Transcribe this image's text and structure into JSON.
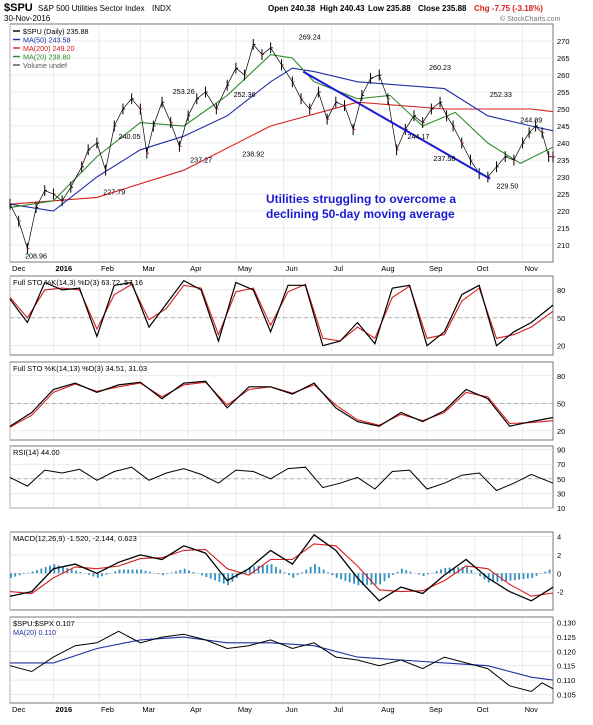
{
  "header": {
    "symbol": "$SPU",
    "name": "S&P 500 Utilities Sector Index",
    "exchange": "INDX",
    "date": "30-Nov-2016",
    "open": "Open 240.38",
    "high": "High 240.43",
    "low": "Low 235.88",
    "close": "Close 235.88",
    "chg": "Chg -7.75 (-3.18%)",
    "watermark": "© StockCharts.com"
  },
  "colors": {
    "price": "#000000",
    "ma50": "#1f2fa6",
    "ma200": "#d52020",
    "ma20": "#2f8a2f",
    "trendline": "#1a1ad6",
    "annotation": "#1a1ad6",
    "histogram": "#2f8fc0",
    "slow": "#d52020",
    "grid": "#dcdcdc"
  },
  "chart_data": [
    {
      "type": "line",
      "panel": "price",
      "title": "$SPU S&P 500 Utilities Sector Index INDX",
      "legend": [
        "$SPU (Daily) 235.88",
        "MA(50) 243.58",
        "MA(200) 249.20",
        "MA(20) 238.80",
        "Volume undef"
      ],
      "ylim": [
        205,
        275
      ],
      "yticks": [
        210,
        215,
        220,
        225,
        230,
        235,
        240,
        245,
        250,
        255,
        260,
        265,
        270
      ],
      "x_labels": [
        "Dec",
        "2016",
        "Feb",
        "Mar",
        "Apr",
        "May",
        "Jun",
        "Jul",
        "Aug",
        "Sep",
        "Oct",
        "Nov"
      ],
      "x_range": [
        0,
        250
      ],
      "price": {
        "x": [
          0,
          4,
          8,
          12,
          16,
          20,
          24,
          28,
          33,
          36,
          40,
          44,
          48,
          52,
          56,
          60,
          63,
          66,
          70,
          74,
          78,
          82,
          86,
          90,
          95,
          100,
          104,
          108,
          112,
          116,
          120,
          125,
          130,
          134,
          138,
          142,
          146,
          150,
          154,
          158,
          162,
          166,
          170,
          174,
          178,
          182,
          186,
          190,
          194,
          198,
          201,
          204,
          208,
          212,
          216,
          220,
          224,
          228,
          232,
          236,
          239,
          242,
          245,
          248,
          250
        ],
        "y": [
          222,
          217,
          209,
          221,
          226,
          225,
          223,
          227,
          233,
          238,
          240,
          232,
          245,
          250,
          253,
          250,
          237,
          245,
          252,
          246,
          239,
          248,
          253,
          255,
          250,
          257,
          262,
          260,
          269,
          266,
          268,
          263,
          258,
          253,
          250,
          255,
          247,
          252,
          251,
          244,
          254,
          259,
          260,
          253,
          238,
          244,
          248,
          246,
          250,
          252,
          248,
          245,
          240,
          235,
          231,
          230,
          233,
          236,
          235,
          240,
          243,
          245,
          243,
          236,
          235.88
        ]
      },
      "ma50": {
        "x": [
          0,
          20,
          40,
          60,
          80,
          100,
          120,
          130,
          140,
          160,
          180,
          200,
          220,
          240,
          250
        ],
        "y": [
          222,
          220,
          230,
          238,
          242,
          248,
          258,
          262,
          261,
          258,
          257,
          256,
          248,
          245,
          243.58
        ]
      },
      "ma200": {
        "x": [
          0,
          40,
          80,
          120,
          160,
          200,
          240,
          250
        ],
        "y": [
          222,
          224,
          232,
          245,
          252,
          250,
          250,
          249.2
        ]
      },
      "ma20": {
        "x": [
          0,
          20,
          40,
          60,
          80,
          100,
          120,
          130,
          140,
          160,
          175,
          190,
          205,
          220,
          235,
          250
        ],
        "y": [
          221,
          223,
          236,
          246,
          245,
          254,
          266,
          265,
          258,
          253,
          254,
          245,
          249,
          240,
          234,
          238.8
        ]
      },
      "trendline": {
        "x": [
          135,
          221
        ],
        "y": [
          261,
          229.5
        ]
      },
      "annotations": [
        {
          "x": 12,
          "y": 208.96,
          "label": "208.96",
          "pos": "below"
        },
        {
          "x": 48,
          "y": 227.79,
          "label": "227.79",
          "pos": "below"
        },
        {
          "x": 55,
          "y": 240.05,
          "label": "240.05",
          "pos": "above"
        },
        {
          "x": 80,
          "y": 253.26,
          "label": "253.26",
          "pos": "above"
        },
        {
          "x": 88,
          "y": 237.27,
          "label": "237.27",
          "pos": "below"
        },
        {
          "x": 108,
          "y": 252.36,
          "label": "252.36",
          "pos": "above"
        },
        {
          "x": 112,
          "y": 238.92,
          "label": "238.92",
          "pos": "below"
        },
        {
          "x": 138,
          "y": 269.24,
          "label": "269.24",
          "pos": "above"
        },
        {
          "x": 198,
          "y": 260.23,
          "label": "260.23",
          "pos": "above"
        },
        {
          "x": 188,
          "y": 244.17,
          "label": "244.17",
          "pos": "below"
        },
        {
          "x": 200,
          "y": 237.58,
          "label": "237.58",
          "pos": "below"
        },
        {
          "x": 226,
          "y": 252.33,
          "label": "252.33",
          "pos": "above"
        },
        {
          "x": 240,
          "y": 244.89,
          "label": "244.89",
          "pos": "above"
        },
        {
          "x": 229,
          "y": 229.5,
          "label": "229.50",
          "pos": "below"
        }
      ],
      "note": [
        "Utilities struggling to overcome a",
        "declining 50-day moving average"
      ]
    },
    {
      "type": "line",
      "panel": "sto1",
      "title": "Full STO %K(14,3) %D(3) 63.72, 57.16",
      "ylim": [
        10,
        95
      ],
      "yticks": [
        20,
        50,
        80
      ],
      "k": {
        "x": [
          0,
          8,
          16,
          24,
          32,
          40,
          48,
          56,
          64,
          72,
          80,
          88,
          96,
          104,
          112,
          120,
          128,
          136,
          144,
          152,
          160,
          168,
          176,
          184,
          192,
          200,
          208,
          216,
          224,
          232,
          240,
          250
        ],
        "y": [
          70,
          45,
          88,
          80,
          82,
          30,
          85,
          88,
          40,
          65,
          90,
          80,
          25,
          88,
          80,
          35,
          85,
          85,
          20,
          25,
          45,
          22,
          82,
          85,
          20,
          35,
          75,
          85,
          20,
          35,
          45,
          63.72
        ]
      },
      "d": {
        "x": [
          0,
          8,
          16,
          24,
          32,
          40,
          48,
          56,
          64,
          72,
          80,
          88,
          96,
          104,
          112,
          120,
          128,
          136,
          144,
          152,
          160,
          168,
          176,
          184,
          192,
          200,
          208,
          216,
          224,
          232,
          240,
          250
        ],
        "y": [
          72,
          50,
          80,
          82,
          80,
          38,
          75,
          86,
          48,
          60,
          85,
          82,
          32,
          78,
          82,
          42,
          78,
          86,
          28,
          25,
          40,
          28,
          72,
          84,
          28,
          32,
          68,
          82,
          28,
          32,
          40,
          57.16
        ]
      }
    },
    {
      "type": "line",
      "panel": "sto2",
      "title": "Full STO %K(14,13) %D(3) 34.51, 31.03",
      "ylim": [
        10,
        95
      ],
      "yticks": [
        20,
        50,
        80
      ],
      "k": {
        "x": [
          0,
          10,
          20,
          30,
          40,
          50,
          60,
          70,
          80,
          90,
          100,
          110,
          120,
          130,
          140,
          150,
          160,
          170,
          180,
          190,
          200,
          210,
          220,
          230,
          240,
          250
        ],
        "y": [
          25,
          40,
          65,
          72,
          62,
          70,
          73,
          55,
          72,
          74,
          45,
          68,
          68,
          60,
          72,
          45,
          30,
          25,
          40,
          30,
          42,
          65,
          55,
          25,
          30,
          34.51
        ]
      },
      "d": {
        "x": [
          0,
          10,
          20,
          30,
          40,
          50,
          60,
          70,
          80,
          90,
          100,
          110,
          120,
          130,
          140,
          150,
          160,
          170,
          180,
          190,
          200,
          210,
          220,
          230,
          240,
          250
        ],
        "y": [
          24,
          37,
          62,
          71,
          63,
          68,
          72,
          57,
          70,
          73,
          48,
          65,
          68,
          61,
          70,
          48,
          32,
          26,
          38,
          31,
          40,
          62,
          57,
          28,
          29,
          31.03
        ]
      }
    },
    {
      "type": "line",
      "panel": "rsi",
      "title": "RSI(14) 44.00",
      "ylim": [
        10,
        95
      ],
      "yticks": [
        10,
        30,
        50,
        70,
        90
      ],
      "values": {
        "x": [
          0,
          8,
          16,
          24,
          32,
          40,
          48,
          56,
          64,
          72,
          80,
          88,
          96,
          104,
          112,
          120,
          128,
          136,
          144,
          152,
          160,
          168,
          176,
          184,
          192,
          200,
          208,
          216,
          224,
          232,
          240,
          250
        ],
        "y": [
          52,
          40,
          62,
          58,
          63,
          48,
          60,
          66,
          48,
          58,
          64,
          56,
          44,
          62,
          60,
          50,
          64,
          66,
          38,
          44,
          52,
          36,
          60,
          62,
          36,
          44,
          55,
          58,
          34,
          44,
          56,
          44
        ]
      }
    },
    {
      "type": "line",
      "panel": "macd",
      "title": "MACD(12,26,9) -1.520, -2.144, 0.623",
      "ylim": [
        -4,
        4.5
      ],
      "yticks": [
        -2,
        0,
        2,
        4
      ],
      "macd": {
        "x": [
          0,
          10,
          20,
          30,
          40,
          50,
          60,
          70,
          80,
          90,
          100,
          110,
          120,
          130,
          140,
          150,
          160,
          170,
          180,
          190,
          200,
          210,
          220,
          230,
          240,
          250
        ],
        "y": [
          -2.5,
          -2.0,
          0.5,
          1.0,
          0.0,
          1.2,
          2.0,
          1.5,
          3.0,
          2.2,
          -0.8,
          0.5,
          2.5,
          1.0,
          4.2,
          2.5,
          -0.5,
          -3.0,
          -1.5,
          -2.2,
          -0.2,
          1.5,
          -0.5,
          -2.0,
          -3.0,
          -1.52
        ]
      },
      "signal": {
        "x": [
          0,
          10,
          20,
          30,
          40,
          50,
          60,
          70,
          80,
          90,
          100,
          110,
          120,
          130,
          140,
          150,
          160,
          170,
          180,
          190,
          200,
          210,
          220,
          230,
          240,
          250
        ],
        "y": [
          -2.0,
          -2.2,
          -0.5,
          0.7,
          0.5,
          0.8,
          1.6,
          1.7,
          2.5,
          2.6,
          0.5,
          -0.2,
          1.5,
          1.5,
          3.2,
          3.0,
          0.8,
          -1.8,
          -2.0,
          -1.9,
          -0.8,
          0.8,
          0.5,
          -1.2,
          -2.5,
          -2.144
        ]
      },
      "hist": {
        "x": [
          0,
          10,
          20,
          30,
          40,
          50,
          60,
          70,
          80,
          90,
          100,
          110,
          120,
          130,
          140,
          150,
          160,
          170,
          180,
          190,
          200,
          210,
          220,
          230,
          240,
          250
        ],
        "y": [
          -0.5,
          0.2,
          1.0,
          0.3,
          -0.5,
          0.4,
          0.4,
          -0.2,
          0.5,
          -0.4,
          -1.3,
          0.7,
          1.0,
          -0.5,
          1.0,
          -0.5,
          -1.3,
          -1.2,
          0.5,
          -0.3,
          0.6,
          0.7,
          -1.0,
          -0.8,
          -0.5,
          0.623
        ]
      }
    },
    {
      "type": "line",
      "panel": "ratio",
      "title": "$SPU:$SPX 0.107",
      "legend": [
        "MA(20) 0.110"
      ],
      "ylim": [
        0.102,
        0.132
      ],
      "yticks": [
        0.105,
        0.11,
        0.115,
        0.12,
        0.125,
        0.13
      ],
      "ratio": {
        "x": [
          0,
          10,
          20,
          30,
          40,
          50,
          60,
          70,
          80,
          90,
          100,
          110,
          120,
          130,
          140,
          150,
          160,
          170,
          180,
          190,
          200,
          210,
          220,
          230,
          240,
          245,
          250
        ],
        "y": [
          0.115,
          0.113,
          0.118,
          0.122,
          0.123,
          0.127,
          0.123,
          0.125,
          0.126,
          0.124,
          0.121,
          0.122,
          0.124,
          0.121,
          0.123,
          0.118,
          0.117,
          0.115,
          0.117,
          0.114,
          0.118,
          0.116,
          0.114,
          0.108,
          0.106,
          0.109,
          0.107
        ]
      },
      "ma": {
        "x": [
          0,
          20,
          40,
          60,
          80,
          100,
          120,
          140,
          160,
          180,
          200,
          220,
          240,
          250
        ],
        "y": [
          0.116,
          0.116,
          0.121,
          0.124,
          0.125,
          0.123,
          0.123,
          0.122,
          0.118,
          0.117,
          0.116,
          0.115,
          0.111,
          0.11
        ]
      }
    }
  ]
}
